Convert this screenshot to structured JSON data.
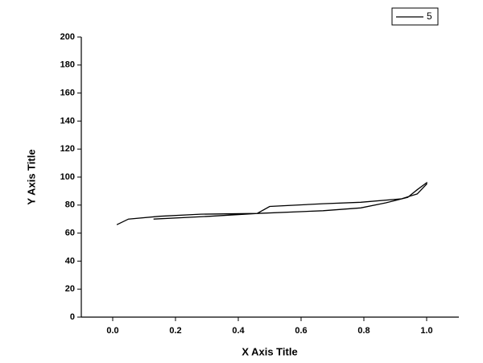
{
  "chart_data": {
    "type": "line",
    "x_label": "X Axis Title",
    "y_label": "Y Axis Title",
    "x": [
      0.013,
      0.05,
      0.15,
      0.28,
      0.46,
      0.67,
      0.79,
      0.87,
      0.94,
      0.97,
      1.0,
      1.0,
      0.97,
      0.92,
      0.79,
      0.67,
      0.5,
      0.46,
      0.31,
      0.13
    ],
    "series": [
      {
        "name": "5",
        "color": "#000000",
        "values": [
          66,
          70,
          72,
          73.5,
          74,
          76,
          78,
          81.6,
          85.6,
          91,
          96,
          95,
          88,
          84.5,
          82,
          81,
          79,
          74,
          72,
          70
        ]
      }
    ],
    "xlim": [
      -0.1,
      1.1
    ],
    "xticks": [
      {
        "value": 0,
        "label": "0.0"
      },
      0.2,
      0.4,
      0.6,
      0.8,
      {
        "value": 1,
        "label": "1.0"
      }
    ],
    "ylim": [
      0,
      200
    ],
    "yticks": [
      0,
      20,
      40,
      60,
      80,
      100,
      120,
      140,
      160,
      180,
      200
    ],
    "legend": "top-right"
  }
}
